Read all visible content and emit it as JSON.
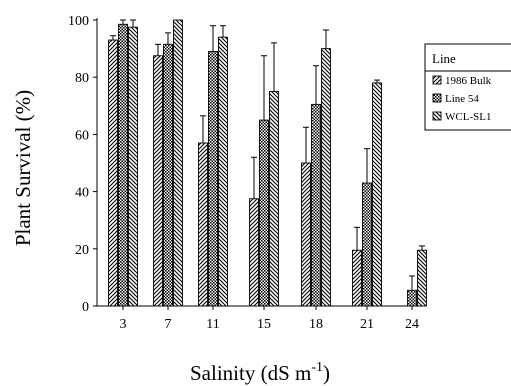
{
  "chart_data": {
    "type": "bar",
    "title": "",
    "xlabel": "Salinity (dS  m",
    "xlabel_sup": "-1",
    "xlabel_close": ")",
    "ylabel": "Plant Survival (%)",
    "ylim": [
      0,
      100
    ],
    "yticks": [
      "0",
      "20",
      "40",
      "60",
      "80",
      "100"
    ],
    "categories": [
      "3",
      "7",
      "11",
      "15",
      "18",
      "21",
      "24"
    ],
    "legend": {
      "title": "Line",
      "placement": "top-right"
    },
    "series": [
      {
        "name": "1986 Bulk",
        "pattern": "diag-right",
        "values": [
          93,
          87.5,
          57,
          37.5,
          50,
          19.5,
          0
        ],
        "errors": [
          1.5,
          4,
          9.5,
          14.5,
          12.5,
          8,
          0
        ]
      },
      {
        "name": "Line 54",
        "pattern": "crosshatch",
        "values": [
          98.5,
          91.5,
          89,
          65,
          70.5,
          43,
          5.5
        ],
        "errors": [
          1.5,
          4,
          9,
          22.5,
          13.5,
          12,
          5
        ]
      },
      {
        "name": "WCL-SL1",
        "pattern": "diag-left",
        "values": [
          97.5,
          100,
          94,
          75,
          90,
          78,
          19.5
        ],
        "errors": [
          2.5,
          0,
          4,
          17,
          6.5,
          1,
          1.5
        ]
      }
    ]
  }
}
